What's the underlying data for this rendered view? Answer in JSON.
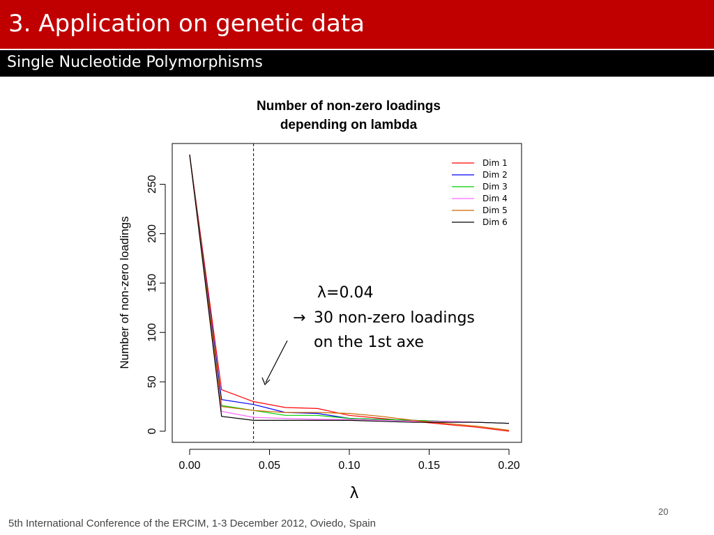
{
  "slide": {
    "title": "3. Application on genetic data",
    "subtitle": "Single Nucleotide Polymorphisms",
    "footer": "5th International Conference of the ERCIM, 1-3 December 2012, Oviedo, Spain",
    "page_number": "20",
    "colors": {
      "title_bar": "#c00000",
      "subtitle_bar": "#000000"
    }
  },
  "annotation": {
    "line1": "λ=0.04",
    "arrow_glyph": "→",
    "line2": "30 non-zero loadings",
    "line3": "on the 1st axe"
  },
  "chart_data": {
    "type": "line",
    "title_lines": [
      "Number of non-zero loadings",
      "depending on lambda"
    ],
    "xlabel": "λ",
    "ylabel": "Number of non-zero loadings",
    "xlim": [
      0,
      0.2
    ],
    "ylim": [
      0,
      280
    ],
    "x_ticks": [
      "0.00",
      "0.05",
      "0.10",
      "0.15",
      "0.20"
    ],
    "y_ticks": [
      "0",
      "50",
      "100",
      "150",
      "200",
      "250"
    ],
    "vline": 0.04,
    "legend_position": "top-right",
    "x": [
      0,
      0.02,
      0.04,
      0.06,
      0.08,
      0.1,
      0.12,
      0.14,
      0.16,
      0.18,
      0.2
    ],
    "series": [
      {
        "name": "Dim 1",
        "color": "#ff0000",
        "values": [
          280,
          42,
          30,
          24,
          23,
          16,
          13,
          10,
          7,
          4,
          0
        ]
      },
      {
        "name": "Dim 2",
        "color": "#0000ff",
        "values": [
          280,
          32,
          27,
          19,
          18,
          13,
          12,
          11,
          10,
          9,
          8
        ]
      },
      {
        "name": "Dim 3",
        "color": "#00cc00",
        "values": [
          280,
          26,
          21,
          16,
          16,
          13,
          12,
          11,
          10,
          9,
          8
        ]
      },
      {
        "name": "Dim 4",
        "color": "#ff66ff",
        "values": [
          280,
          20,
          14,
          13,
          12,
          12,
          11,
          10,
          10,
          9,
          8
        ]
      },
      {
        "name": "Dim 5",
        "color": "#cc6600",
        "values": [
          280,
          25,
          21,
          19,
          19,
          18,
          15,
          11,
          8,
          5,
          1
        ]
      },
      {
        "name": "Dim 6",
        "color": "#000000",
        "values": [
          280,
          15,
          11,
          11,
          11,
          11,
          10,
          9,
          9,
          9,
          8
        ]
      }
    ]
  }
}
